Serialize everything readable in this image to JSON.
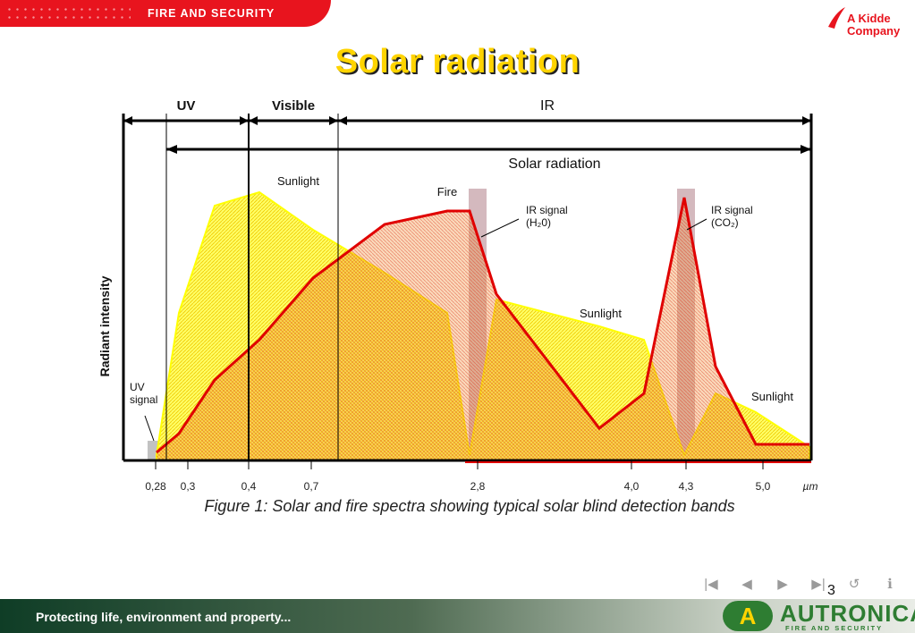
{
  "header": {
    "brand": "FIRE AND SECURITY",
    "company_line1": "A Kidde",
    "company_line2": "Company"
  },
  "slide": {
    "title": "Solar radiation",
    "page_number": "3"
  },
  "caption": "Figure 1: Solar and fire spectra showing typical solar blind detection bands",
  "footer": {
    "slogan": "Protecting life, environment and property...",
    "logo_name": "AUTRONICA",
    "logo_sub": "FIRE AND SECURITY"
  },
  "nav": {
    "first": "|◀",
    "prev": "◀",
    "next": "▶",
    "last": "▶|",
    "back": "↺",
    "info": "ℹ"
  },
  "colors": {
    "fire": "#e00000",
    "sunlight": "#ffff00",
    "band": "#b08088",
    "brand_red": "#e8141e",
    "brand_green": "#2e7d32"
  },
  "chart_data": {
    "type": "area",
    "title": "",
    "xlabel": "µm",
    "ylabel": "Radiant intensity",
    "xticks": [
      "0,28",
      "0,3",
      "0,4",
      "0,7",
      "2,8",
      "4,0",
      "4,3",
      "5,0"
    ],
    "tick_unit": "µm",
    "regions": [
      {
        "label": "UV",
        "from_tick": 0,
        "to_tick": 2
      },
      {
        "label": "Visible",
        "from_tick": 2,
        "to_tick": 4
      },
      {
        "label": "IR",
        "from_tick": 4,
        "to_tick": 8
      }
    ],
    "range_label": "Solar radiation",
    "series": [
      {
        "name": "Sunlight",
        "relative_intensity": [
          0.02,
          0.55,
          0.95,
          1.0,
          0.86,
          0.7,
          0.55,
          0.02,
          0.6,
          0.5,
          0.45,
          0.02,
          0.25,
          0.18,
          0.05
        ]
      },
      {
        "name": "Fire",
        "relative_intensity": [
          0.03,
          0.1,
          0.3,
          0.45,
          0.68,
          0.88,
          0.93,
          0.93,
          0.62,
          0.12,
          0.25,
          0.98,
          0.35,
          0.06,
          0.06
        ]
      }
    ],
    "annotations": [
      "Sunlight",
      "Fire",
      "IR signal (H₂0)",
      "IR signal (CO₂)",
      "Sunlight",
      "Sunlight",
      "UV signal"
    ],
    "detection_bands": [
      {
        "name": "IR signal (H₂0)",
        "center_tick": 4
      },
      {
        "name": "IR signal (CO₂)",
        "center_tick": 6
      },
      {
        "name": "UV signal",
        "center_tick": 0
      }
    ]
  }
}
